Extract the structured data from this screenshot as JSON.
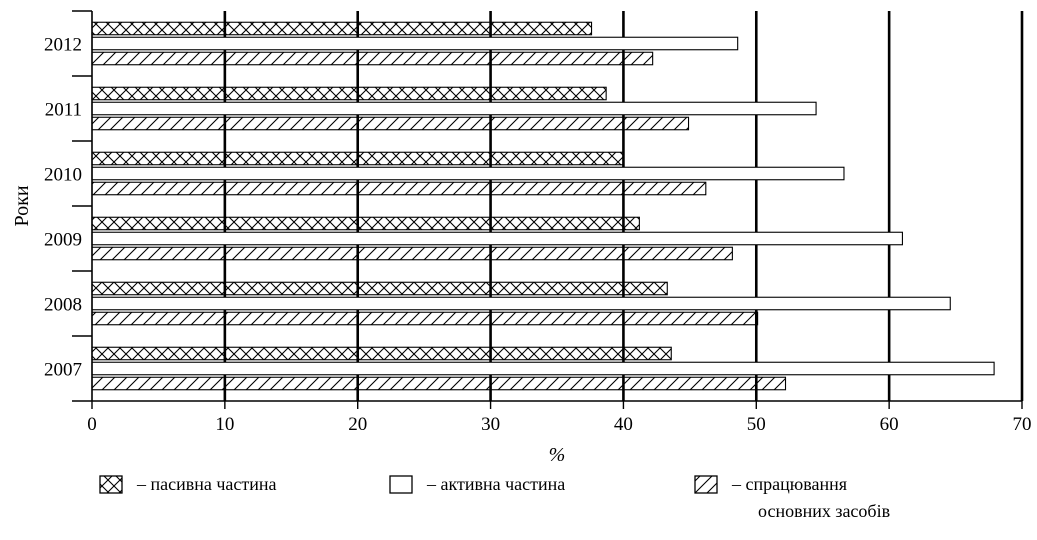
{
  "chart_data": {
    "type": "bar",
    "orientation": "horizontal",
    "categories": [
      "2007",
      "2008",
      "2009",
      "2010",
      "2011",
      "2012"
    ],
    "series": [
      {
        "name": "– пасивна частина",
        "pattern": "crosshatch",
        "values": [
          43.6,
          43.3,
          41.2,
          40.0,
          38.7,
          37.6
        ]
      },
      {
        "name": "– активна частина",
        "pattern": "none",
        "values": [
          67.9,
          64.6,
          61.0,
          56.6,
          54.5,
          48.6
        ]
      },
      {
        "name": "– спрацювання основних засобів",
        "pattern": "diagonal",
        "values": [
          52.2,
          50.1,
          48.2,
          46.2,
          44.9,
          42.2
        ]
      }
    ],
    "xlabel": "%",
    "ylabel": "Роки",
    "xlim": [
      0,
      70
    ],
    "x_ticks": [
      "0",
      "10",
      "20",
      "30",
      "40",
      "50",
      "60",
      "70"
    ],
    "grid": "vertical",
    "legend_position": "bottom",
    "legend": [
      {
        "pattern": "crosshatch",
        "lines": [
          "– пасивна частина"
        ]
      },
      {
        "pattern": "none",
        "lines": [
          "– активна частина"
        ]
      },
      {
        "pattern": "diagonal",
        "lines": [
          "– спрацювання",
          "основних засобів"
        ]
      }
    ]
  }
}
